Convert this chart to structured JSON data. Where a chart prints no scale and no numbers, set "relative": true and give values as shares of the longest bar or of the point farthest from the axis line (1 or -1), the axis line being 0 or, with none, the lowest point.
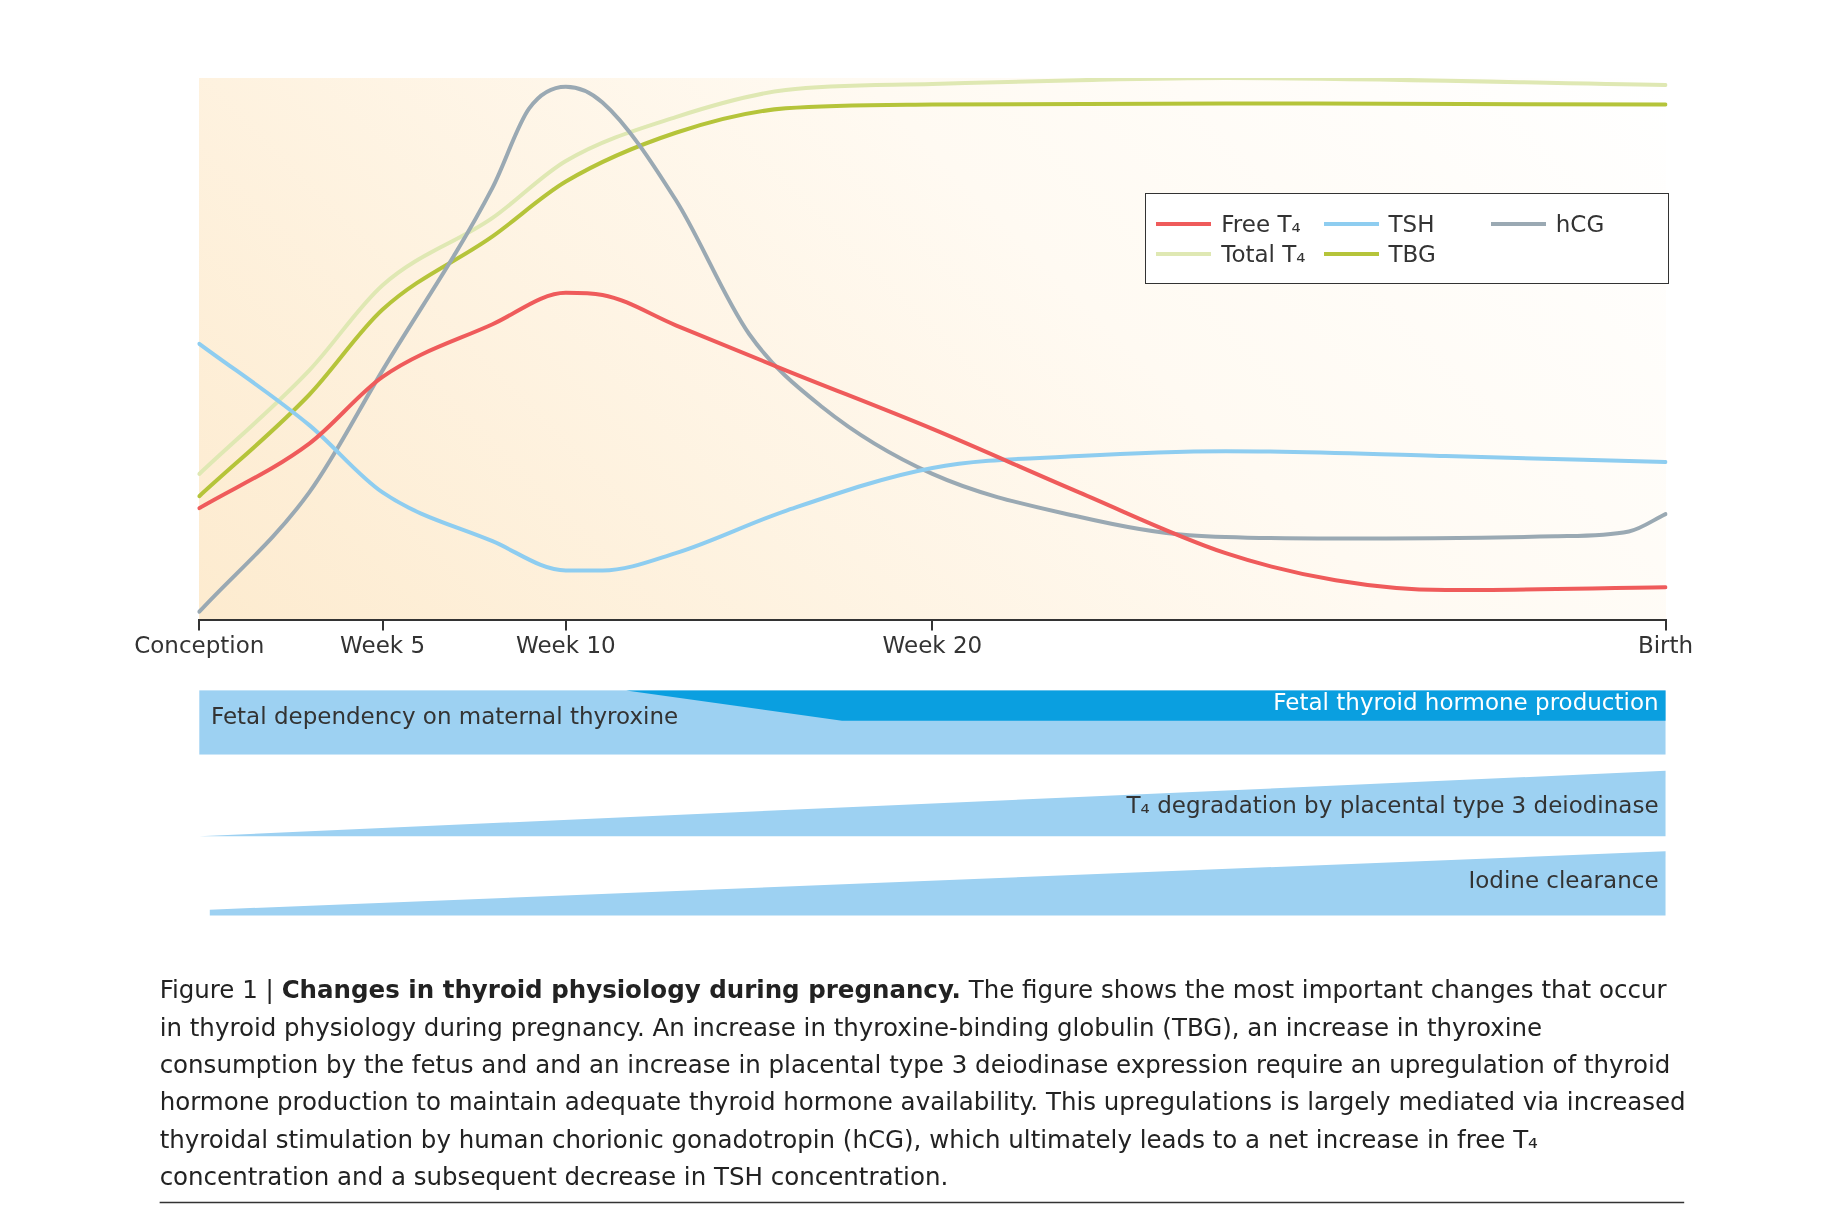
{
  "chart_data": {
    "type": "line",
    "relative": true,
    "categories": [
      "Conception",
      null,
      null,
      null,
      null,
      "Week 5",
      null,
      null,
      null,
      null,
      "Week 10",
      null,
      null,
      null,
      null,
      null,
      null,
      null,
      null,
      null,
      "Week 20",
      null,
      null,
      null,
      null,
      null,
      null,
      null,
      null,
      null,
      null,
      null,
      null,
      null,
      null,
      null,
      null,
      null,
      null,
      null,
      "Birth"
    ],
    "grid": false,
    "legend": "top right",
    "marker": "none",
    "line_style": "solid",
    "series": [
      {
        "name": "Free T₄",
        "color": "#ef5b5b",
        "values": [
          0.207,
          null,
          null,
          0.326,
          null,
          0.449,
          null,
          null,
          0.546,
          null,
          0.604,
          0.6,
          null,
          0.544,
          null,
          null,
          0.461,
          null,
          null,
          null,
          0.353,
          null,
          null,
          null,
          0.236,
          null,
          null,
          null,
          0.124,
          null,
          null,
          0.074,
          null,
          null,
          0.056,
          null,
          null,
          null,
          null,
          null,
          0.061
        ]
      },
      {
        "name": "TSH",
        "color": "#8ecdf0",
        "values": [
          0.51,
          null,
          null,
          0.36,
          null,
          0.236,
          null,
          null,
          0.146,
          null,
          0.092,
          0.092,
          null,
          0.124,
          null,
          null,
          0.202,
          null,
          null,
          null,
          0.281,
          null,
          null,
          null,
          0.303,
          null,
          null,
          null,
          0.312,
          null,
          null,
          null,
          null,
          null,
          0.303,
          null,
          null,
          null,
          null,
          null,
          0.292
        ]
      },
      {
        "name": "hCG",
        "color": "#9aa9b3",
        "values": [
          0.016,
          null,
          null,
          0.236,
          null,
          0.461,
          null,
          null,
          0.798,
          0.944,
          0.984,
          0.955,
          null,
          0.775,
          null,
          0.528,
          null,
          0.393,
          null,
          null,
          0.27,
          null,
          null,
          null,
          0.191,
          null,
          null,
          0.157,
          null,
          null,
          null,
          0.151,
          null,
          null,
          null,
          null,
          null,
          0.155,
          null,
          0.164,
          0.196
        ]
      },
      {
        "name": "Total T₄",
        "color": "#dfe8b3",
        "values": [
          0.27,
          null,
          null,
          0.461,
          null,
          0.618,
          null,
          null,
          0.742,
          null,
          0.847,
          null,
          null,
          0.928,
          null,
          null,
          0.978,
          null,
          null,
          null,
          0.989,
          null,
          null,
          null,
          0.996,
          null,
          null,
          null,
          1.0,
          null,
          null,
          null,
          null,
          null,
          null,
          null,
          null,
          null,
          null,
          null,
          0.987
        ]
      },
      {
        "name": "TBG",
        "color": "#b5c43a",
        "values": [
          0.229,
          null,
          null,
          0.416,
          null,
          0.573,
          null,
          null,
          0.708,
          null,
          0.809,
          null,
          null,
          0.899,
          null,
          null,
          0.944,
          null,
          null,
          null,
          0.951,
          null,
          null,
          null,
          null,
          null,
          null,
          null,
          0.953,
          null,
          null,
          null,
          null,
          null,
          null,
          null,
          null,
          null,
          null,
          null,
          0.951
        ]
      }
    ],
    "annotations": [
      "Fetal dependency on maternal thyroxine",
      "Fetal thyroid hormone production",
      "T₄ degradation by placental type 3 deiodinase",
      "Iodine clearance",
      "Figure 1 | ",
      "Changes in thyroid physiology during pregnancy.",
      "The figure shows the most important changes that occur in thyroid physiology during pregnancy. An increase in thyroxine-binding globulin (TBG), an increase in thyroxine consumption by the fetus and and an increase in placental type 3 deiodinase expression require an upregulation of thyroid hormone production to maintain adequate thyroid hormone availability. This upregulations is largely mediated via increased thyroidal stimulation by human chorionic gonadotropin (hCG), which ultimately leads to a net increase in free T₄ concentration and a subsequent decrease in TSH concentration."
    ]
  }
}
